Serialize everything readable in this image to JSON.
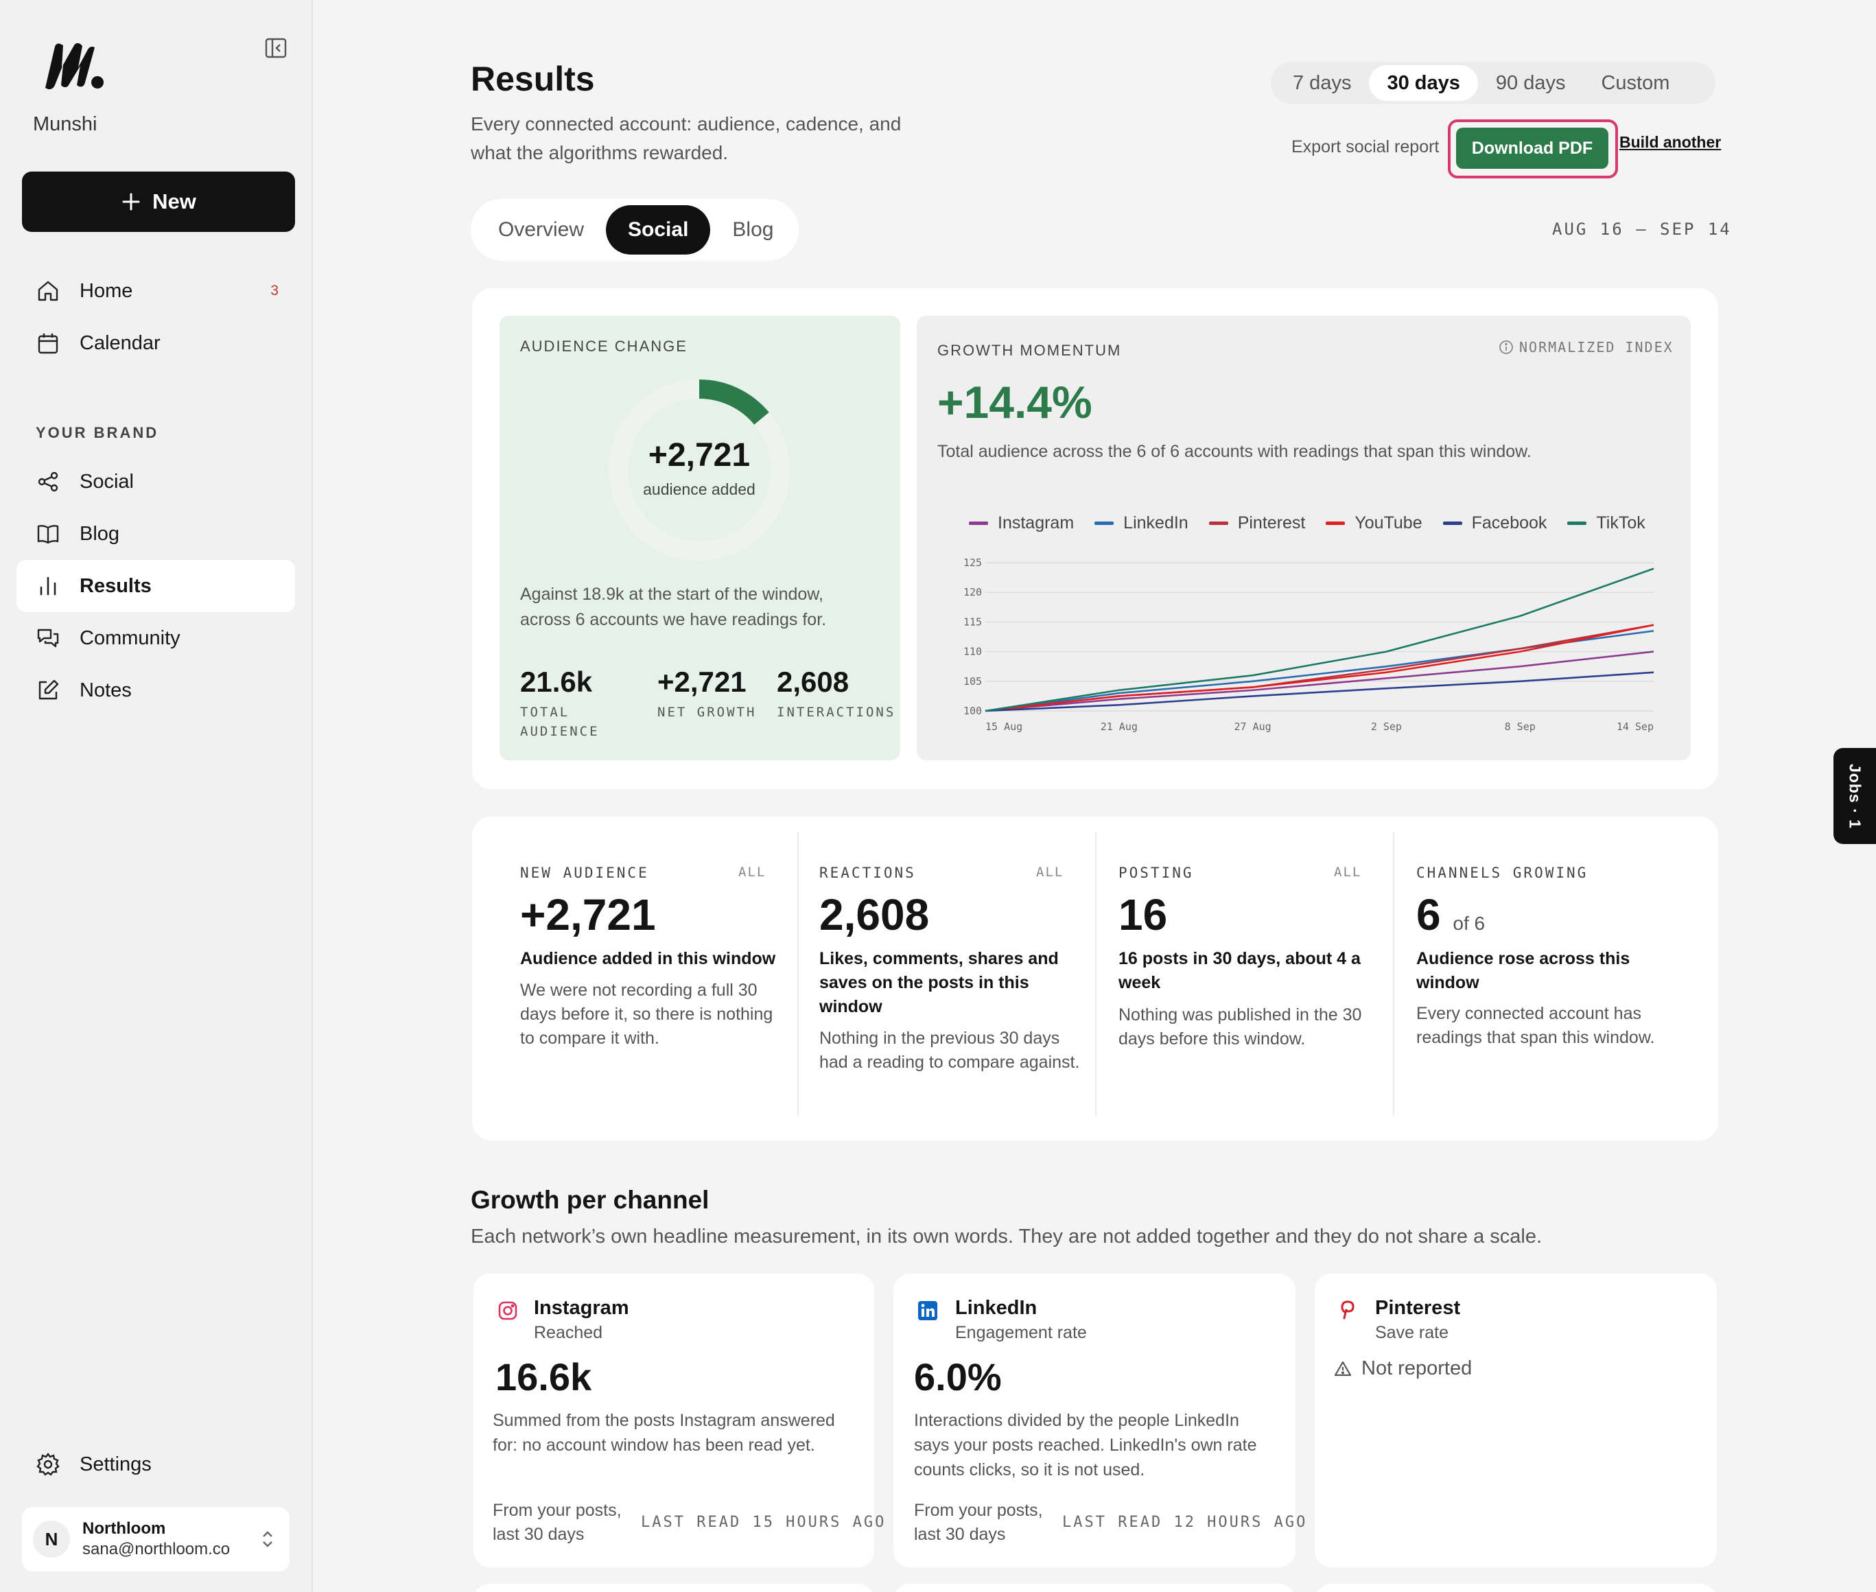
{
  "brand": {
    "name": "Munshi"
  },
  "sidebar": {
    "new_label": "New",
    "nav": [
      {
        "label": "Home",
        "badge": "3"
      },
      {
        "label": "Calendar"
      }
    ],
    "section_label": "YOUR BRAND",
    "brand_nav": [
      {
        "label": "Social"
      },
      {
        "label": "Blog"
      },
      {
        "label": "Results"
      },
      {
        "label": "Community"
      },
      {
        "label": "Notes"
      }
    ],
    "settings_label": "Settings",
    "account": {
      "initial": "N",
      "name": "Northloom",
      "email": "sana@northloom.co"
    }
  },
  "header": {
    "title": "Results",
    "subtitle": "Every connected account: audience, cadence, and what the algorithms rewarded.",
    "ranges": [
      "7 days",
      "30 days",
      "90 days",
      "Custom"
    ],
    "active_range": "30 days",
    "export_label": "Export social report",
    "download_label": "Download PDF",
    "build_label": "Build another"
  },
  "view_tabs": [
    "Overview",
    "Social",
    "Blog"
  ],
  "active_view": "Social",
  "date_range": "AUG 16 – SEP 14",
  "audience": {
    "label": "AUDIENCE CHANGE",
    "value": "+2,721",
    "caption": "audience added",
    "share_of_ring": 0.14,
    "description": "Against 18.9k at the start of the window, across 6 accounts we have readings for.",
    "stats": [
      {
        "value": "21.6k",
        "label": "TOTAL AUDIENCE"
      },
      {
        "value": "+2,721",
        "label": "NET GROWTH"
      },
      {
        "value": "2,608",
        "label": "INTERACTIONS"
      }
    ]
  },
  "growth": {
    "label": "GROWTH MOMENTUM",
    "index_label": "NORMALIZED INDEX",
    "value": "+14.4%",
    "description": "Total audience across the 6 of 6 accounts with readings that span this window."
  },
  "chart_data": {
    "type": "line",
    "x": [
      "15 Aug",
      "21 Aug",
      "27 Aug",
      "2 Sep",
      "8 Sep",
      "14 Sep"
    ],
    "ylim": [
      100,
      125
    ],
    "yticks": [
      100,
      105,
      110,
      115,
      120,
      125
    ],
    "series": [
      {
        "name": "Instagram",
        "color": "#8e3a8e",
        "values": [
          100,
          102,
          103.5,
          105.5,
          107.5,
          110
        ]
      },
      {
        "name": "LinkedIn",
        "color": "#2b6cb0",
        "values": [
          100,
          103,
          105,
          107.5,
          110.5,
          113.5
        ]
      },
      {
        "name": "Pinterest",
        "color": "#b7313f",
        "values": [
          100,
          102.5,
          104,
          107,
          110.5,
          114.5
        ]
      },
      {
        "name": "YouTube",
        "color": "#e02020",
        "values": [
          100,
          102.5,
          104,
          106.5,
          110,
          114.5
        ]
      },
      {
        "name": "Facebook",
        "color": "#2c3e8c",
        "values": [
          100,
          101,
          102.5,
          103.8,
          105,
          106.5
        ]
      },
      {
        "name": "TikTok",
        "color": "#1a7a64",
        "values": [
          100,
          103.5,
          106,
          110,
          116,
          124
        ]
      }
    ]
  },
  "kpis": [
    {
      "label": "NEW AUDIENCE",
      "all": "ALL",
      "value": "+2,721",
      "of": "",
      "headline": "Audience added in this window",
      "body": "We were not recording a full 30 days before it, so there is nothing to compare it with."
    },
    {
      "label": "REACTIONS",
      "all": "ALL",
      "value": "2,608",
      "of": "",
      "headline": "Likes, comments, shares and saves on the posts in this window",
      "body": "Nothing in the previous 30 days had a reading to compare against."
    },
    {
      "label": "POSTING",
      "all": "ALL",
      "value": "16",
      "of": "",
      "headline": "16 posts in 30 days, about 4 a week",
      "body": "Nothing was published in the 30 days before this window."
    },
    {
      "label": "CHANNELS GROWING",
      "all": "",
      "value": "6",
      "of": "of 6",
      "headline": "Audience rose across this window",
      "body": "Every connected account has readings that span this window."
    }
  ],
  "channels": {
    "title": "Growth per channel",
    "subtitle": "Each network’s own headline measurement, in its own words. They are not added together and they do not share a scale.",
    "items": [
      {
        "name": "Instagram",
        "metric": "Reached",
        "value": "16.6k",
        "description": "Summed from the posts Instagram answered for: no account window has been read yet.",
        "footer": "From your posts, last 30 days",
        "last_read": "LAST READ 15 HOURS AGO"
      },
      {
        "name": "LinkedIn",
        "metric": "Engagement rate",
        "value": "6.0%",
        "description": "Interactions divided by the people LinkedIn says your posts reached. LinkedIn's own rate counts clicks, so it is not used.",
        "footer": "From your posts, last 30 days",
        "last_read": "LAST READ 12 HOURS AGO"
      },
      {
        "name": "Pinterest",
        "metric": "Save rate",
        "status": "Not reported"
      }
    ]
  },
  "jobs_label": "Jobs · 1"
}
